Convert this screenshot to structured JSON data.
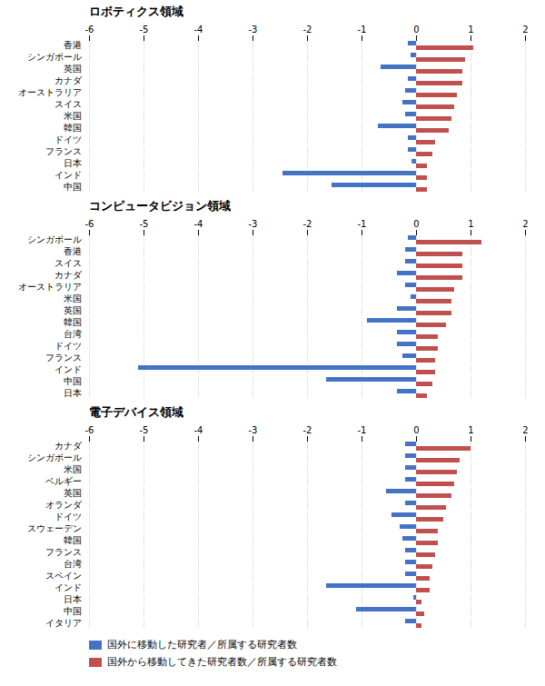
{
  "chart_data": [
    {
      "type": "bar",
      "orientation": "horizontal",
      "title": "ロボティクス領域",
      "categories": [
        "香港",
        "シンガポール",
        "英国",
        "カナダ",
        "オーストラリア",
        "スイス",
        "米国",
        "韓国",
        "ドイツ",
        "フランス",
        "日本",
        "インド",
        "中国"
      ],
      "series": [
        {
          "name": "国外に移動した研究者／所属する研究者数",
          "color": "#4472C4",
          "values": [
            -0.15,
            -0.1,
            -0.65,
            -0.15,
            -0.2,
            -0.25,
            -0.2,
            -0.7,
            -0.15,
            -0.15,
            -0.08,
            -2.45,
            -1.55
          ]
        },
        {
          "name": "国外から移動してきた研究者数／所属する研究者数",
          "color": "#C0504D",
          "values": [
            1.05,
            0.9,
            0.85,
            0.85,
            0.75,
            0.7,
            0.65,
            0.6,
            0.35,
            0.3,
            0.2,
            0.2,
            0.2
          ]
        }
      ],
      "xlim": [
        -6,
        2
      ],
      "xticks": [
        -6,
        -5,
        -4,
        -3,
        -2,
        -1,
        0,
        1,
        2
      ],
      "grid": true
    },
    {
      "type": "bar",
      "orientation": "horizontal",
      "title": "コンピュータビジョン領域",
      "categories": [
        "シンガポール",
        "香港",
        "スイス",
        "カナダ",
        "オーストラリア",
        "米国",
        "英国",
        "韓国",
        "台湾",
        "ドイツ",
        "フランス",
        "インド",
        "中国",
        "日本"
      ],
      "series": [
        {
          "name": "国外に移動した研究者／所属する研究者数",
          "color": "#4472C4",
          "values": [
            -0.15,
            -0.2,
            -0.2,
            -0.35,
            -0.2,
            -0.1,
            -0.35,
            -0.9,
            -0.35,
            -0.35,
            -0.25,
            -5.1,
            -1.65,
            -0.35
          ]
        },
        {
          "name": "国外から移動してきた研究者数／所属する研究者数",
          "color": "#C0504D",
          "values": [
            1.2,
            0.85,
            0.85,
            0.85,
            0.7,
            0.65,
            0.65,
            0.55,
            0.4,
            0.4,
            0.35,
            0.35,
            0.3,
            0.2
          ]
        }
      ],
      "xlim": [
        -6,
        2
      ],
      "xticks": [
        -6,
        -5,
        -4,
        -3,
        -2,
        -1,
        0,
        1,
        2
      ],
      "grid": true
    },
    {
      "type": "bar",
      "orientation": "horizontal",
      "title": "電子デバイス領域",
      "categories": [
        "カナダ",
        "シンガポール",
        "米国",
        "ベルギー",
        "英国",
        "オランダ",
        "ドイツ",
        "スウェーデン",
        "韓国",
        "フランス",
        "台湾",
        "スペイン",
        "インド",
        "日本",
        "中国",
        "イタリア"
      ],
      "series": [
        {
          "name": "国外に移動した研究者／所属する研究者数",
          "color": "#4472C4",
          "values": [
            -0.2,
            -0.2,
            -0.2,
            -0.2,
            -0.55,
            -0.2,
            -0.45,
            -0.3,
            -0.25,
            -0.2,
            -0.2,
            -0.2,
            -1.65,
            -0.05,
            -1.1,
            -0.2
          ]
        },
        {
          "name": "国外から移動してきた研究者数／所属する研究者数",
          "color": "#C0504D",
          "values": [
            1.0,
            0.8,
            0.75,
            0.7,
            0.65,
            0.55,
            0.5,
            0.4,
            0.4,
            0.35,
            0.3,
            0.25,
            0.25,
            0.1,
            0.15,
            0.1
          ]
        }
      ],
      "xlim": [
        -6,
        2
      ],
      "xticks": [
        -6,
        -5,
        -4,
        -3,
        -2,
        -1,
        0,
        1,
        2
      ],
      "grid": true,
      "legend": "bottom"
    }
  ]
}
